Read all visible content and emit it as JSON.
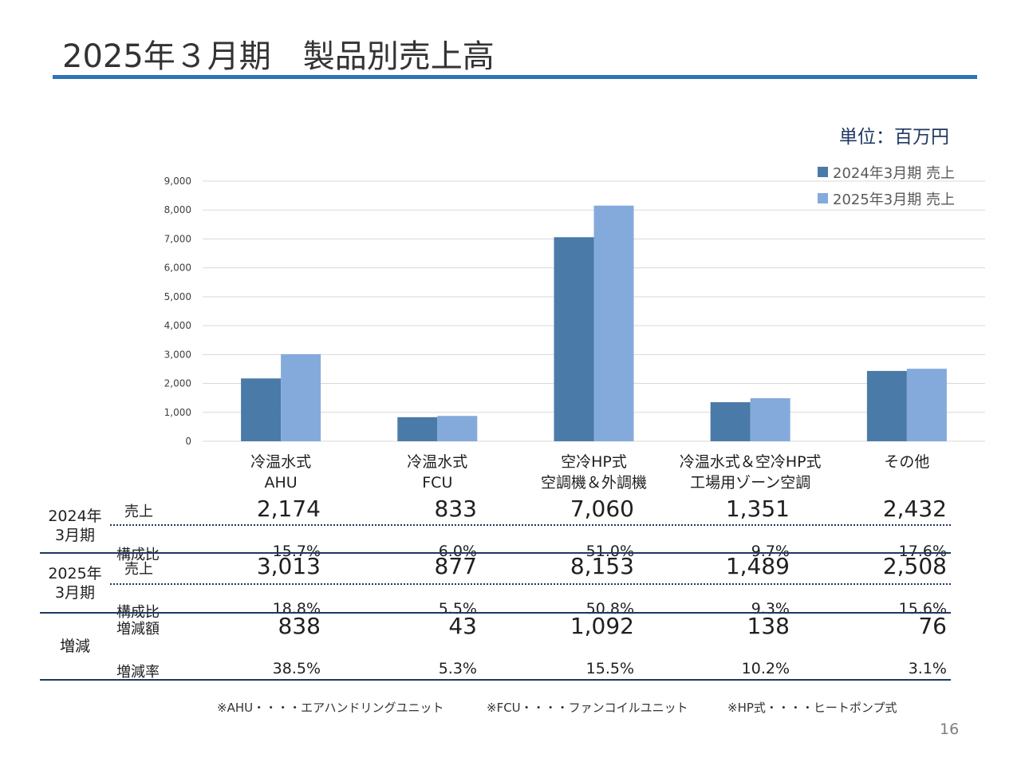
{
  "title": "2025年３月期　製品別売上高",
  "unit": "単位：百万円",
  "colors": {
    "series1": "#4a7aa8",
    "series2": "#84aadb",
    "rule": "#2e75b6",
    "table_line": "#1f3864"
  },
  "chart_data": {
    "type": "bar",
    "categories": [
      "冷温水式\nAHU",
      "冷温水式\nFCU",
      "空冷HP式\n空調機＆外調機",
      "冷温水式＆空冷HP式\n工場用ゾーン空調",
      "その他"
    ],
    "series": [
      {
        "name": "2024年3月期 売上",
        "values": [
          2174,
          833,
          7060,
          1351,
          2432
        ]
      },
      {
        "name": "2025年3月期 売上",
        "values": [
          3013,
          877,
          8153,
          1489,
          2508
        ]
      }
    ],
    "ylim": [
      0,
      9000
    ],
    "yticks": [
      "0",
      "1,000",
      "2,000",
      "3,000",
      "4,000",
      "5,000",
      "6,000",
      "7,000",
      "8,000",
      "9,000"
    ],
    "grid": true,
    "legend_position": "top-right"
  },
  "table": {
    "groups": [
      {
        "label": "2024年\n3月期",
        "rows": [
          {
            "label": "売上",
            "values": [
              "2,174",
              "833",
              "7,060",
              "1,351",
              "2,432"
            ]
          },
          {
            "label": "構成比",
            "values": [
              "15.7%",
              "6.0%",
              "51.0%",
              "9.7%",
              "17.6%"
            ]
          }
        ]
      },
      {
        "label": "2025年\n3月期",
        "rows": [
          {
            "label": "売上",
            "values": [
              "3,013",
              "877",
              "8,153",
              "1,489",
              "2,508"
            ]
          },
          {
            "label": "構成比",
            "values": [
              "18.8%",
              "5.5%",
              "50.8%",
              "9.3%",
              "15.6%"
            ]
          }
        ]
      },
      {
        "label": "増減",
        "rows": [
          {
            "label": "増減額",
            "values": [
              "838",
              "43",
              "1,092",
              "138",
              "76"
            ]
          },
          {
            "label": "増減率",
            "values": [
              "38.5%",
              "5.3%",
              "15.5%",
              "10.2%",
              "3.1%"
            ]
          }
        ]
      }
    ]
  },
  "footnotes": [
    "※AHU・・・・エアハンドリングユニット",
    "※FCU・・・・ファンコイルユニット",
    "※HP式・・・・ヒートポンプ式"
  ],
  "page_number": "16"
}
